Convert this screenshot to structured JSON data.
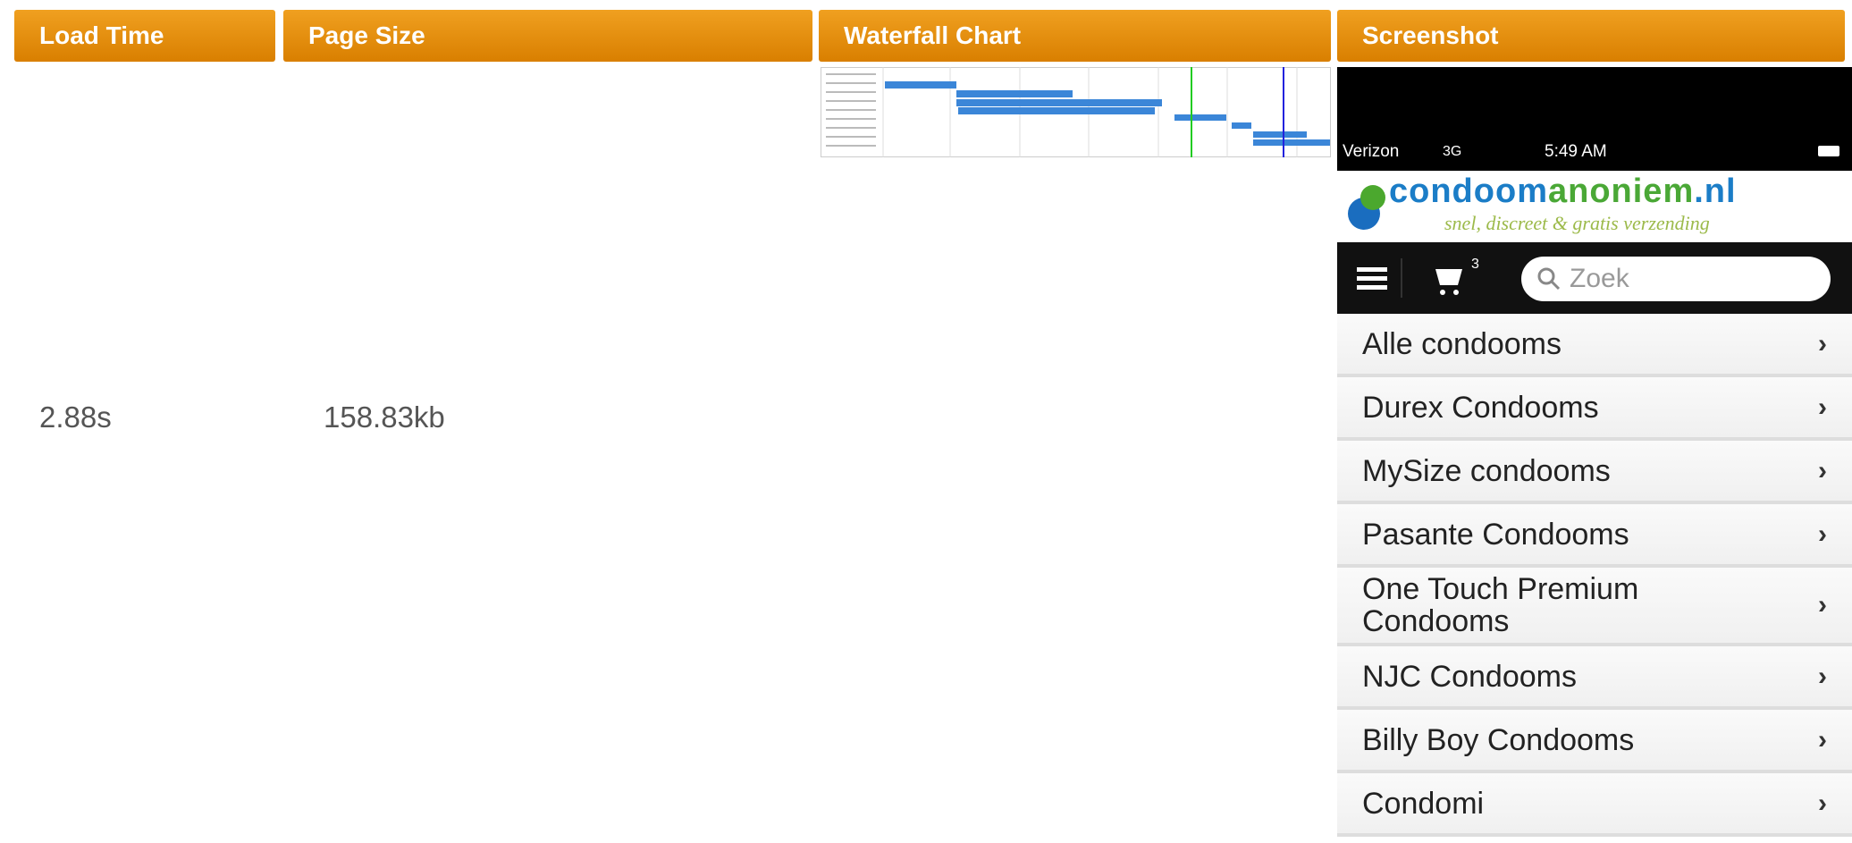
{
  "table": {
    "headers": [
      "Load Time",
      "Page Size",
      "Waterfall Chart",
      "Screenshot"
    ],
    "rows": [
      [
        "2.88s",
        "158.83kb"
      ]
    ]
  },
  "screenshot": {
    "carrier": "Verizon",
    "network": "3G",
    "time": "5:49 AM",
    "logo_parts": [
      "condoom",
      "anoniem",
      ".nl"
    ],
    "tagline": "snel, discreet & gratis verzending",
    "cart_count": "3",
    "search_placeholder": "Zoek",
    "menu": [
      "Alle condooms",
      "Durex Condooms",
      "MySize condooms",
      "Pasante Condooms",
      "One Touch Premium Condooms",
      "NJC Condooms",
      "Billy Boy Condooms",
      "Condomi"
    ]
  }
}
